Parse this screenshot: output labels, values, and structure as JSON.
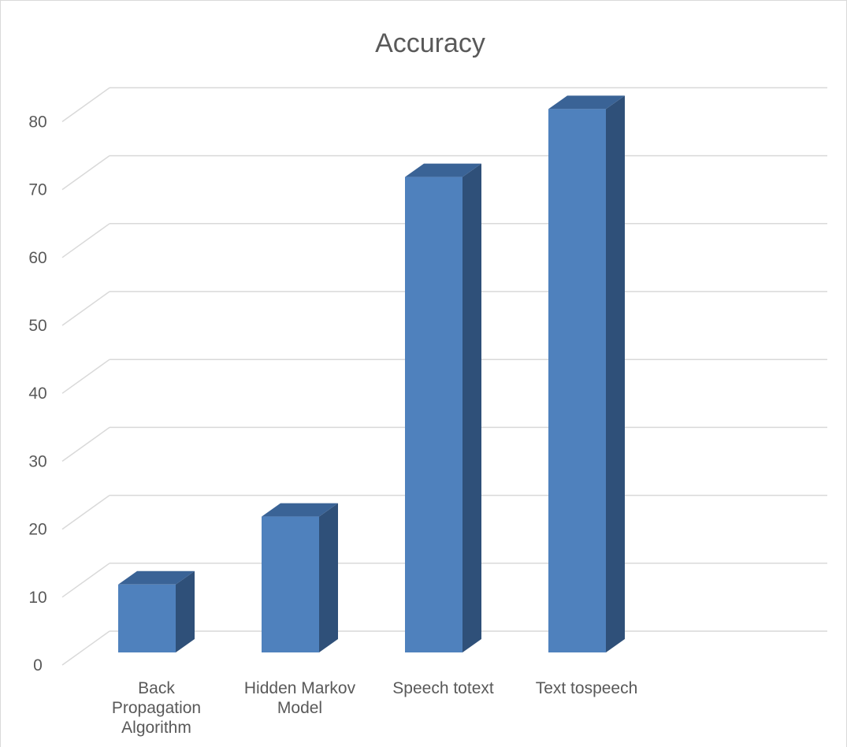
{
  "chart_data": {
    "type": "bar",
    "title": "Accuracy",
    "categories": [
      [
        "Back",
        "Propagation",
        "Algorithm"
      ],
      [
        "Hidden Markov",
        "Model"
      ],
      [
        "Speech totext"
      ],
      [
        "Text tospeech"
      ]
    ],
    "values": [
      10,
      20,
      70,
      80
    ],
    "ylim": [
      0,
      80
    ],
    "yticks": [
      0,
      10,
      20,
      30,
      40,
      50,
      60,
      70,
      80
    ],
    "grid": true,
    "legend": "none",
    "three_d": true,
    "colors": {
      "bar_front": "#4f81bd",
      "bar_top": "#3a6396",
      "bar_side": "#2f5079",
      "grid": "#d9d9d9",
      "text": "#595959"
    }
  }
}
